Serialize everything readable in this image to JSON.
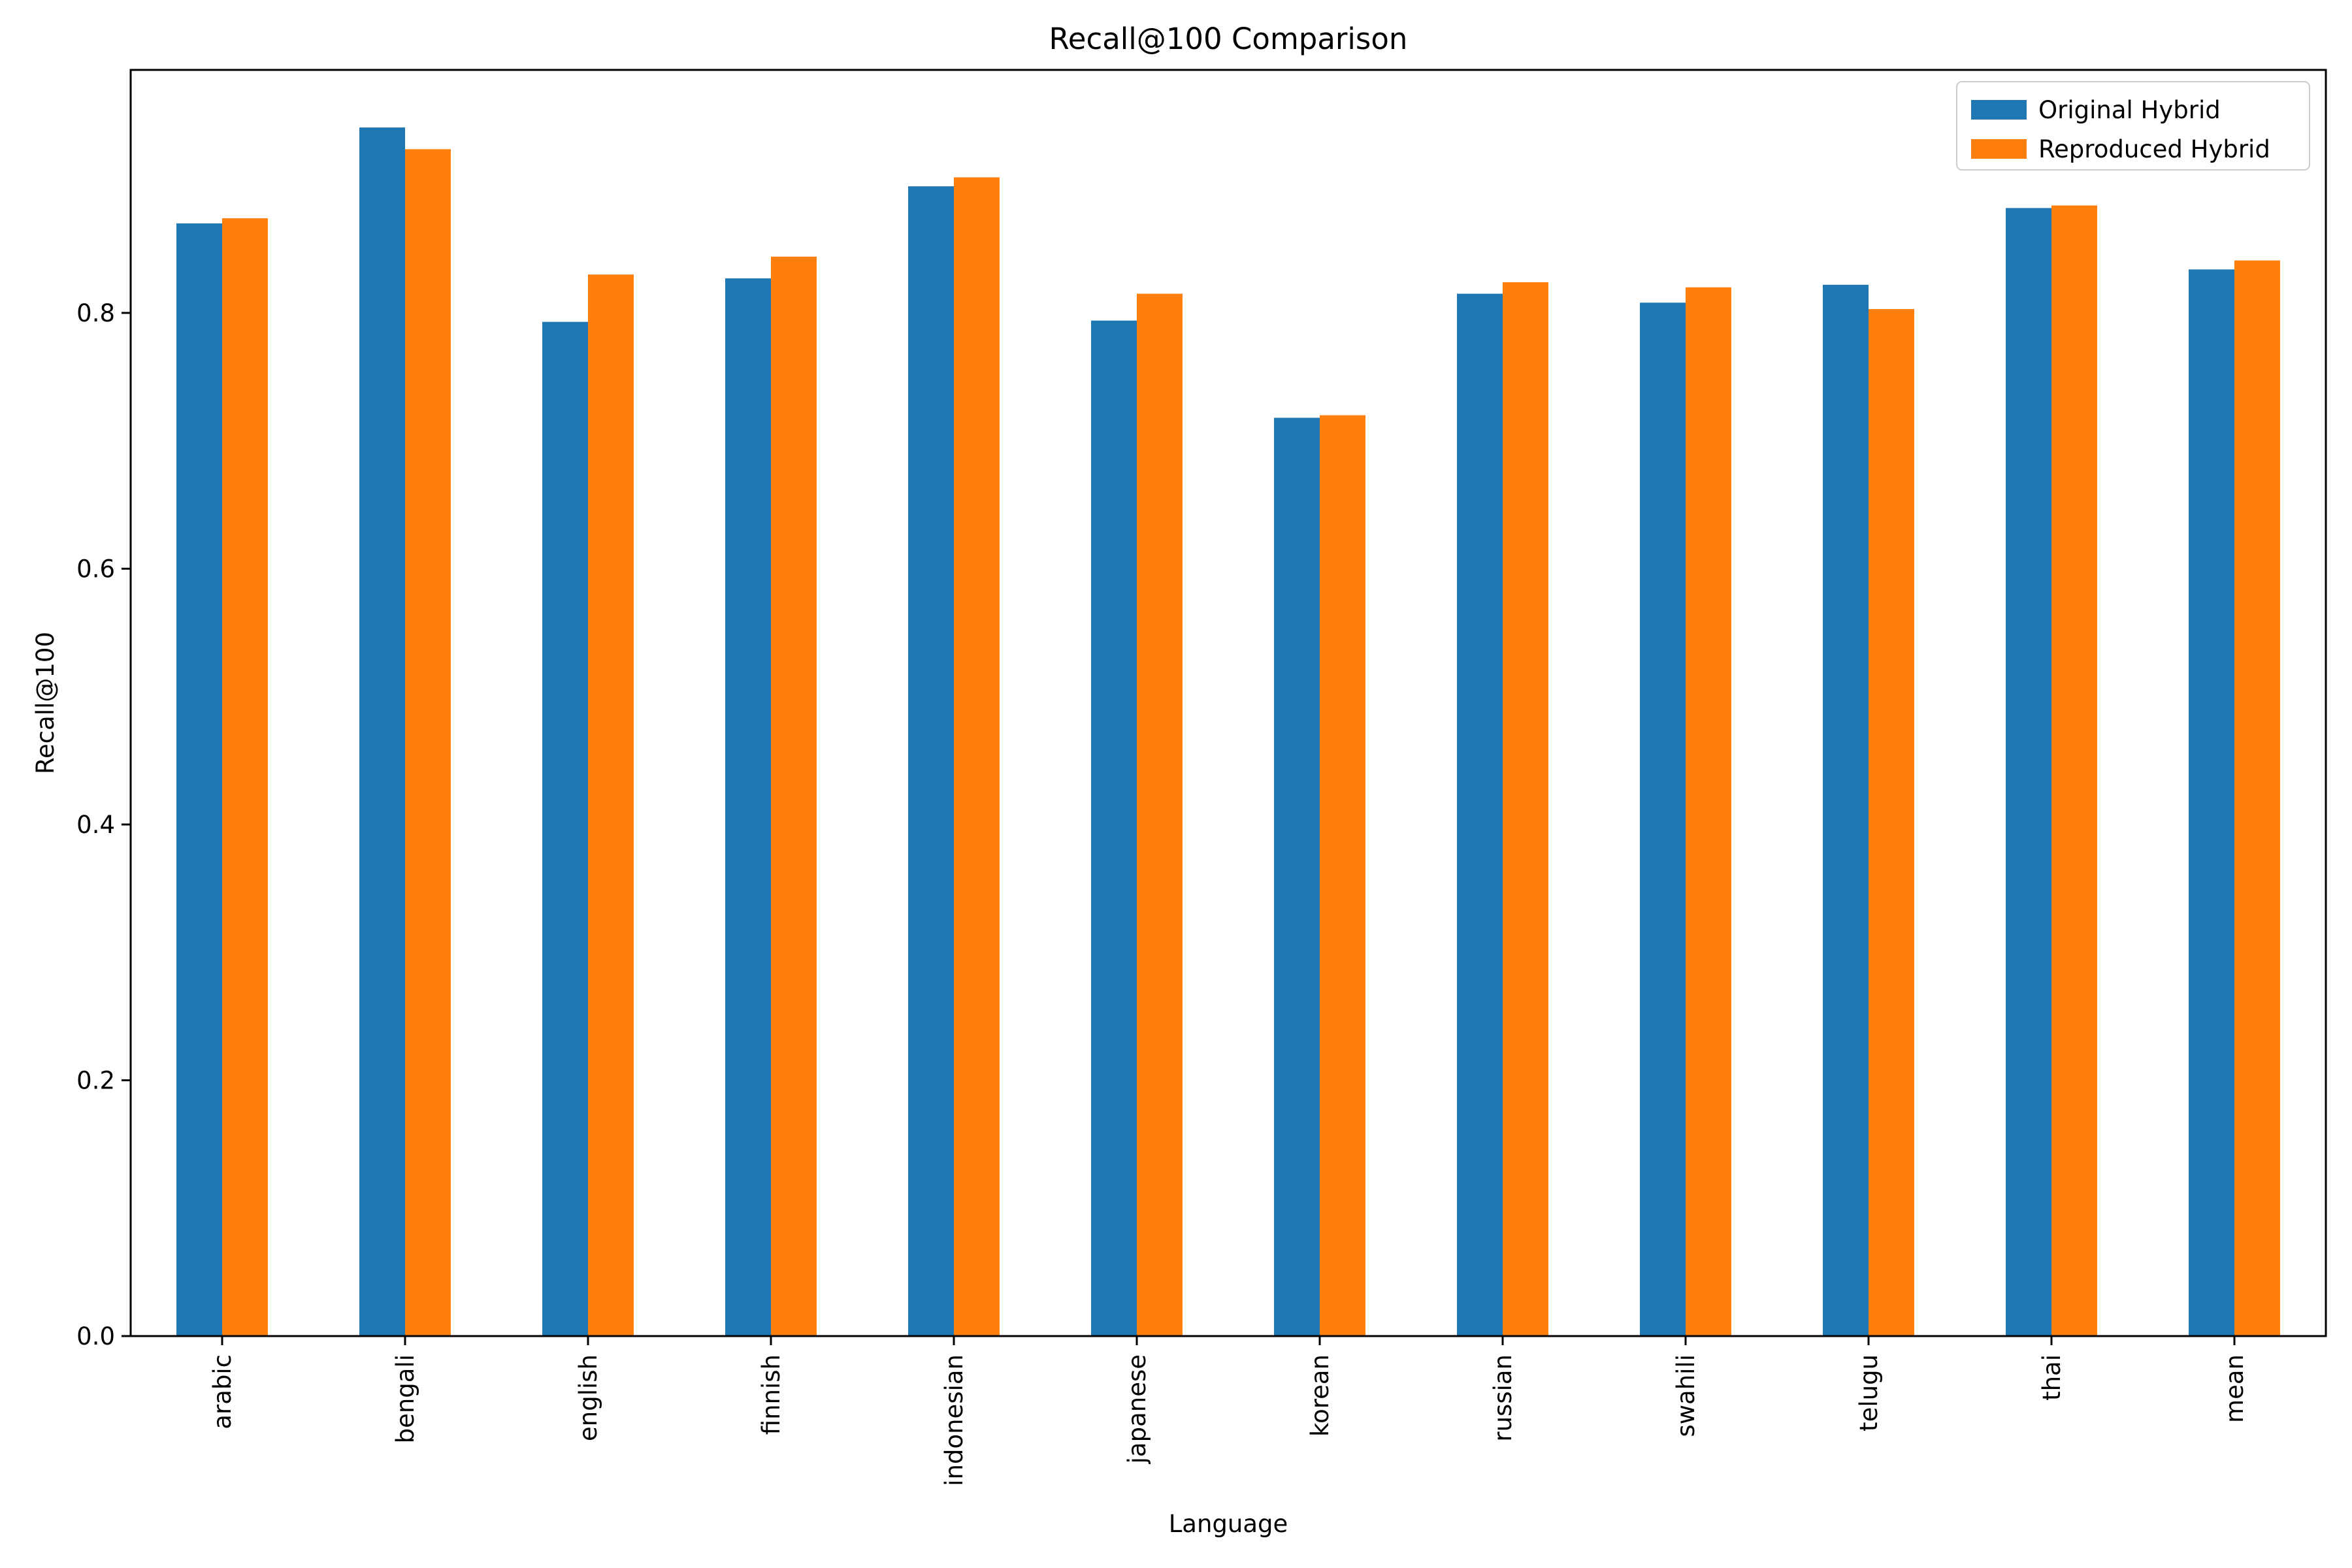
{
  "chart_data": {
    "type": "bar",
    "title": "Recall@100 Comparison",
    "xlabel": "Language",
    "ylabel": "Recall@100",
    "ylim": [
      0,
      0.99
    ],
    "yticks": [
      0.0,
      0.2,
      0.4,
      0.6,
      0.8
    ],
    "ytick_labels": [
      "0.0",
      "0.2",
      "0.4",
      "0.6",
      "0.8"
    ],
    "grid": false,
    "legend_position": "top-right",
    "categories": [
      "arabic",
      "bengali",
      "english",
      "finnish",
      "indonesian",
      "japanese",
      "korean",
      "russian",
      "swahili",
      "telugu",
      "thai",
      "mean"
    ],
    "series": [
      {
        "name": "Original Hybrid",
        "color": "#1f77b4",
        "values": [
          0.87,
          0.945,
          0.793,
          0.827,
          0.899,
          0.794,
          0.718,
          0.815,
          0.808,
          0.822,
          0.882,
          0.834
        ]
      },
      {
        "name": "Reproduced Hybrid",
        "color": "#ff7f0e",
        "values": [
          0.874,
          0.928,
          0.83,
          0.844,
          0.906,
          0.815,
          0.72,
          0.824,
          0.82,
          0.803,
          0.884,
          0.841
        ]
      }
    ]
  }
}
